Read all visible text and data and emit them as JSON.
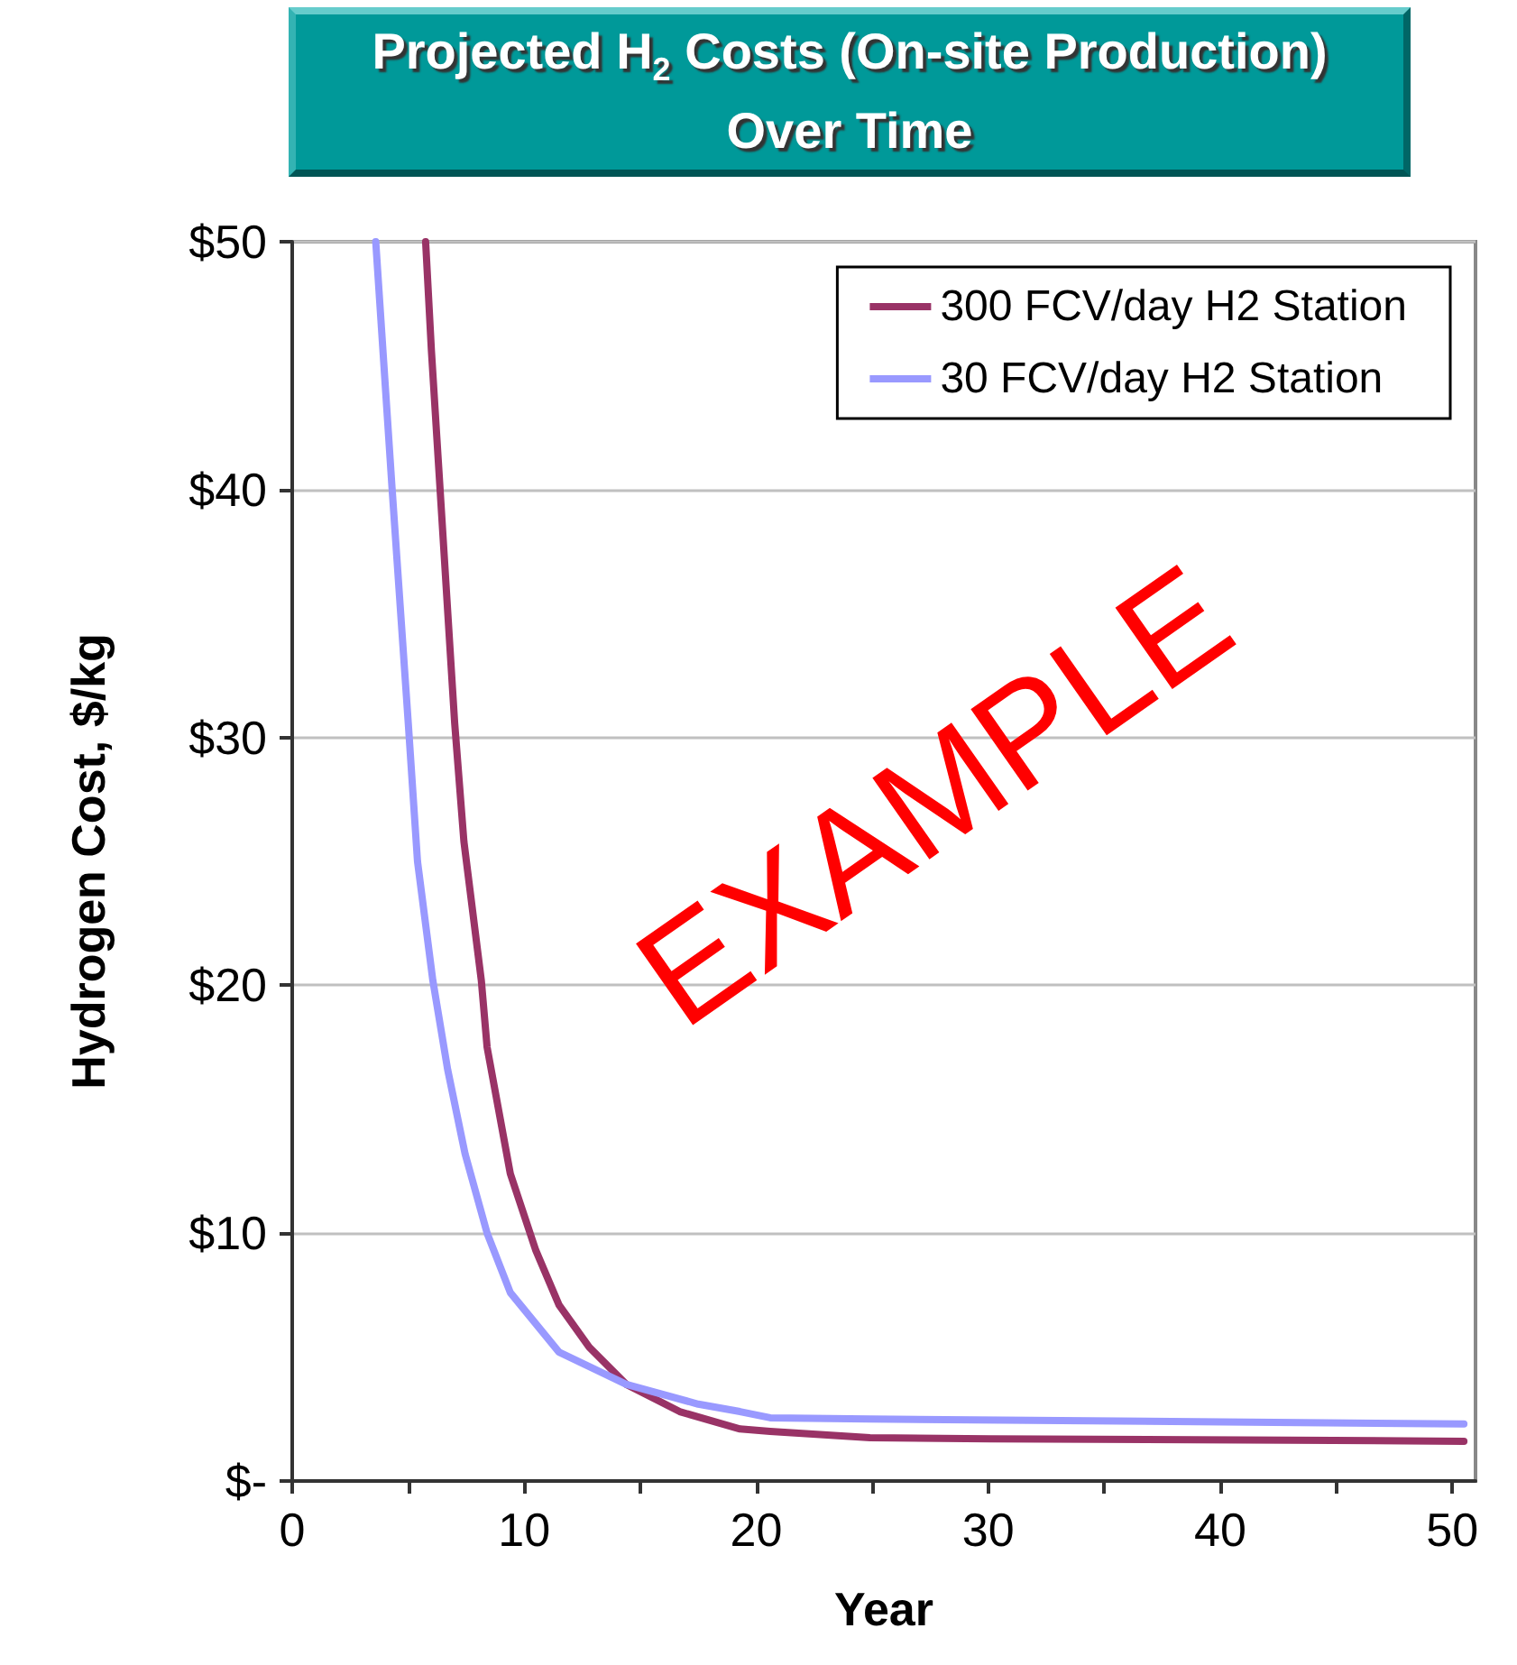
{
  "chart_data": {
    "type": "line",
    "title": "Projected H$_{2}$ Costs (On-site Production) Over Time",
    "xlabel": "Year",
    "ylabel": "Hydrogen Cost, $/kg",
    "series": [
      {
        "name": "300 FCV/day H2 Station",
        "color": "#993366",
        "x": [
          5.75,
          6,
          7,
          7.4,
          8.15,
          8.4,
          9.4,
          10.5,
          11.5,
          12.8,
          14.4,
          16.7,
          19.3,
          20.6,
          24.9,
          30.1,
          43,
          50.5
        ],
        "values": [
          50,
          45.6,
          30.6,
          25.8,
          20.2,
          17.5,
          12.4,
          9.3,
          7.1,
          5.4,
          3.9,
          2.8,
          2.1,
          2.0,
          1.75,
          1.7,
          1.65,
          1.6
        ]
      },
      {
        "name": "30 FCV/day H2 Station",
        "color": "#9999ff",
        "x": [
          3.6,
          4.3,
          5.0,
          5.4,
          6.06,
          6.7,
          7.45,
          8.4,
          9.4,
          11.5,
          14.4,
          17.5,
          19.3,
          20.6,
          24.9,
          37.9,
          50.5
        ],
        "values": [
          50,
          40.1,
          30.6,
          25.0,
          20.2,
          16.6,
          13.2,
          10.0,
          7.6,
          5.2,
          3.9,
          3.1,
          2.8,
          2.55,
          2.5,
          2.4,
          2.3
        ]
      }
    ],
    "xlim": [
      0,
      51
    ],
    "xticks": [
      0,
      {
        "value": 5,
        "label": null
      },
      10,
      {
        "value": 15,
        "label": null
      },
      20,
      {
        "value": 25,
        "label": null
      },
      30,
      {
        "value": 35,
        "label": null
      },
      40,
      {
        "value": 45,
        "label": null
      },
      50
    ],
    "ylim": [
      0,
      50
    ],
    "yticks": [
      {
        "value": 0,
        "label": "$-"
      },
      {
        "value": 10,
        "label": "$10"
      },
      {
        "value": 20,
        "label": "$20"
      },
      {
        "value": 30,
        "label": "$30"
      },
      {
        "value": 40,
        "label": "$40"
      },
      {
        "value": 50,
        "label": "$50"
      }
    ],
    "grid": "y",
    "legend": "top right",
    "marker": "none",
    "line_style": "solid",
    "annotations": [
      "EXAMPLE"
    ]
  }
}
